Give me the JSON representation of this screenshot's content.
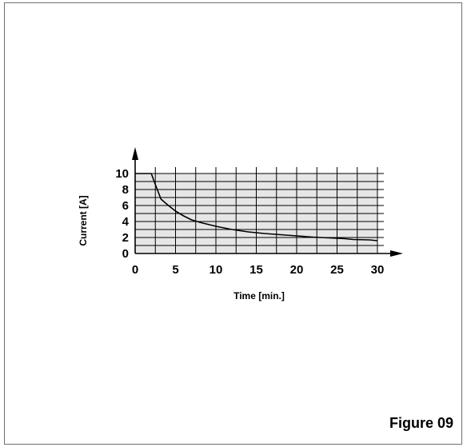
{
  "figure_label": "Figure 09",
  "chart_data": {
    "type": "line",
    "title": "",
    "xlabel": "Time [min.]",
    "ylabel": "Current [A]",
    "xlim": [
      0,
      30
    ],
    "ylim": [
      0,
      10
    ],
    "x_ticks": [
      0,
      5,
      10,
      15,
      20,
      25,
      30
    ],
    "y_ticks": [
      0,
      2,
      4,
      6,
      8,
      10
    ],
    "grid": true,
    "grid_step_x": 2.5,
    "grid_step_y": 1,
    "plot_background": "#e6e6e6",
    "line_color": "#000000",
    "series": [
      {
        "x": [
          0,
          2,
          2.4,
          3.2,
          4,
          5,
          6,
          7,
          8,
          10,
          12,
          14,
          16,
          18,
          20,
          22,
          24,
          26,
          27,
          29,
          30
        ],
        "y": [
          10,
          10,
          8.9,
          6.8,
          6.1,
          5.3,
          4.7,
          4.2,
          3.9,
          3.4,
          3.0,
          2.7,
          2.5,
          2.35,
          2.2,
          2.05,
          1.95,
          1.85,
          1.75,
          1.7,
          1.6
        ]
      }
    ]
  }
}
